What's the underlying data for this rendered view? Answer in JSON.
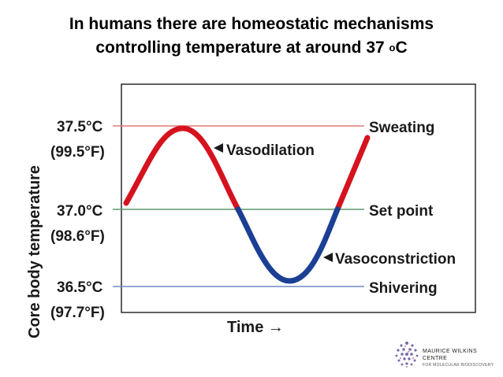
{
  "title": {
    "line1": "In humans there are homeostatic mechanisms",
    "line2_main": "controlling temperature at around 37 ",
    "line2_sup": "o",
    "line2_end": "C"
  },
  "diagram": {
    "y_axis_title": "Core body temperature",
    "x_axis_title": "Time →",
    "levels": [
      {
        "celsius": "37.5°C",
        "fahrenheit": "(99.5°F)",
        "label": "Sweating"
      },
      {
        "celsius": "37.0°C",
        "fahrenheit": "(98.6°F)",
        "label": "Set point"
      },
      {
        "celsius": "36.5°C",
        "fahrenheit": "(97.7°F)",
        "label": "Shivering"
      }
    ],
    "annotations": {
      "upper": "Vasodilation",
      "lower": "Vasoconstriction"
    },
    "colors": {
      "above_set_point": "#d5131f",
      "below_set_point": "#1b3f94",
      "sweating_line": "#e07a7a",
      "set_point_line": "#5a9a6a",
      "shivering_line": "#6f88c4"
    }
  },
  "logo": {
    "name": "MAURICE WILKINS CENTRE",
    "subtitle": "FOR MOLECULAR BIODISCOVERY"
  }
}
